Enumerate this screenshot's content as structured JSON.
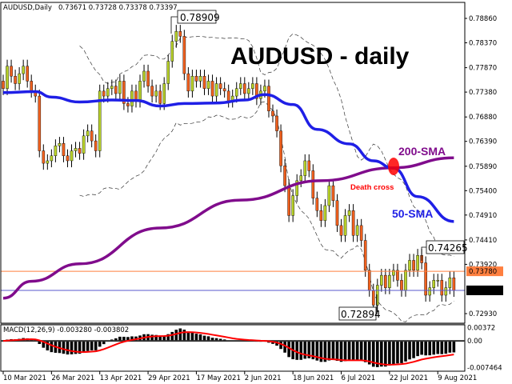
{
  "header": {
    "symbol": "AUDUSD,Daily",
    "ohlc": "0.73671 0.73728 0.73378 0.73397"
  },
  "macd_header": "MACD(12,26,9) -0.003280 -0.003802",
  "annotations": {
    "title": "AUDUSD - daily",
    "sma200_label": "200-SMA",
    "sma50_label": "50-SMA",
    "death_cross_label": "Death cross",
    "high_label": "0.78909",
    "swing_label": "0.74265",
    "low_label": "0.72894"
  },
  "colors": {
    "bull": "#b8d12a",
    "bear": "#f0601e",
    "sma50": "#1f1fe6",
    "sma200": "#800c8c",
    "ask_line": "#ff7f3f",
    "bid_line": "#5a5acd",
    "macd_signal": "#ff0000",
    "death_cross": "#ff0000"
  },
  "chart_data": [
    {
      "type": "candlestick",
      "price_axis": {
        "ticks": [
          "0.78860",
          "0.78370",
          "0.77870",
          "0.77380",
          "0.76880",
          "0.76390",
          "0.75890",
          "0.75400",
          "0.74910",
          "0.74410",
          "0.73920",
          "0.72930"
        ],
        "range": [
          0.7245,
          0.7925
        ]
      },
      "ask_price": "0.73780",
      "bid_price": "0.73397",
      "date_ticks": [
        {
          "date": "2021-03-10",
          "label": "10 Mar 2021"
        },
        {
          "date": "2021-03-26",
          "label": "26 Mar 2021"
        },
        {
          "date": "2021-04-13",
          "label": "13 Apr 2021"
        },
        {
          "date": "2021-04-29",
          "label": "29 Apr 2021"
        },
        {
          "date": "2021-05-17",
          "label": "17 May 2021"
        },
        {
          "date": "2021-06-02",
          "label": "2 Jun 2021"
        },
        {
          "date": "2021-06-18",
          "label": "18 Jun 2021"
        },
        {
          "date": "2021-07-06",
          "label": "6 Jul 2021"
        },
        {
          "date": "2021-07-22",
          "label": "22 Jul 2021"
        },
        {
          "date": "2021-08-09",
          "label": "9 Aug 2021"
        }
      ],
      "closes": [
        [
          "2021-03-10",
          0.7745
        ],
        [
          "2021-03-11",
          0.779
        ],
        [
          "2021-03-12",
          0.777
        ],
        [
          "2021-03-15",
          0.7755
        ],
        [
          "2021-03-16",
          0.7775
        ],
        [
          "2021-03-17",
          0.779
        ],
        [
          "2021-03-18",
          0.776
        ],
        [
          "2021-03-19",
          0.774
        ],
        [
          "2021-03-22",
          0.773
        ],
        [
          "2021-03-23",
          0.762
        ],
        [
          "2021-03-24",
          0.7595
        ],
        [
          "2021-03-25",
          0.76
        ],
        [
          "2021-03-26",
          0.761
        ],
        [
          "2021-03-29",
          0.763
        ],
        [
          "2021-03-30",
          0.7635
        ],
        [
          "2021-03-31",
          0.761
        ],
        [
          "2021-04-01",
          0.76
        ],
        [
          "2021-04-02",
          0.762
        ],
        [
          "2021-04-05",
          0.7625
        ],
        [
          "2021-04-06",
          0.7615
        ],
        [
          "2021-04-07",
          0.765
        ],
        [
          "2021-04-08",
          0.766
        ],
        [
          "2021-04-09",
          0.764
        ],
        [
          "2021-04-12",
          0.762
        ],
        [
          "2021-04-13",
          0.774
        ],
        [
          "2021-04-14",
          0.773
        ],
        [
          "2021-04-15",
          0.7745
        ],
        [
          "2021-04-16",
          0.775
        ],
        [
          "2021-04-19",
          0.7735
        ],
        [
          "2021-04-20",
          0.776
        ],
        [
          "2021-04-21",
          0.7715
        ],
        [
          "2021-04-22",
          0.771
        ],
        [
          "2021-04-23",
          0.774
        ],
        [
          "2021-04-26",
          0.772
        ],
        [
          "2021-04-27",
          0.776
        ],
        [
          "2021-04-28",
          0.778
        ],
        [
          "2021-04-29",
          0.775
        ],
        [
          "2021-04-30",
          0.773
        ],
        [
          "2021-05-03",
          0.774
        ],
        [
          "2021-05-04",
          0.7715
        ],
        [
          "2021-05-05",
          0.7755
        ],
        [
          "2021-05-06",
          0.78
        ],
        [
          "2021-05-07",
          0.784
        ],
        [
          "2021-05-10",
          0.786
        ],
        [
          "2021-05-11",
          0.785
        ],
        [
          "2021-05-12",
          0.7775
        ],
        [
          "2021-05-13",
          0.774
        ],
        [
          "2021-05-14",
          0.777
        ],
        [
          "2021-05-17",
          0.776
        ],
        [
          "2021-05-18",
          0.777
        ],
        [
          "2021-05-19",
          0.7745
        ],
        [
          "2021-05-20",
          0.776
        ],
        [
          "2021-05-21",
          0.773
        ],
        [
          "2021-05-24",
          0.7755
        ],
        [
          "2021-05-25",
          0.7745
        ],
        [
          "2021-05-26",
          0.774
        ],
        [
          "2021-05-27",
          0.772
        ],
        [
          "2021-05-28",
          0.773
        ],
        [
          "2021-05-31",
          0.7745
        ],
        [
          "2021-06-01",
          0.7755
        ],
        [
          "2021-06-02",
          0.7735
        ],
        [
          "2021-06-03",
          0.7745
        ],
        [
          "2021-06-04",
          0.7755
        ],
        [
          "2021-06-07",
          0.7725
        ],
        [
          "2021-06-08",
          0.774
        ],
        [
          "2021-06-09",
          0.775
        ],
        [
          "2021-06-10",
          0.77
        ],
        [
          "2021-06-11",
          0.769
        ],
        [
          "2021-06-14",
          0.766
        ],
        [
          "2021-06-15",
          0.759
        ],
        [
          "2021-06-16",
          0.755
        ],
        [
          "2021-06-17",
          0.749
        ],
        [
          "2021-06-18",
          0.753
        ],
        [
          "2021-06-21",
          0.756
        ],
        [
          "2021-06-22",
          0.757
        ],
        [
          "2021-06-23",
          0.76
        ],
        [
          "2021-06-24",
          0.758
        ],
        [
          "2021-06-25",
          0.7525
        ],
        [
          "2021-06-28",
          0.75
        ],
        [
          "2021-06-29",
          0.748
        ],
        [
          "2021-06-30",
          0.751
        ],
        [
          "2021-07-01",
          0.755
        ],
        [
          "2021-07-02",
          0.752
        ],
        [
          "2021-07-05",
          0.747
        ],
        [
          "2021-07-06",
          0.745
        ],
        [
          "2021-07-07",
          0.749
        ],
        [
          "2021-07-08",
          0.75
        ],
        [
          "2021-07-09",
          0.745
        ],
        [
          "2021-07-12",
          0.747
        ],
        [
          "2021-07-13",
          0.744
        ],
        [
          "2021-07-14",
          0.738
        ],
        [
          "2021-07-15",
          0.734
        ],
        [
          "2021-07-16",
          0.731
        ],
        [
          "2021-07-19",
          0.735
        ],
        [
          "2021-07-20",
          0.737
        ],
        [
          "2021-07-21",
          0.7345
        ],
        [
          "2021-07-22",
          0.737
        ],
        [
          "2021-07-23",
          0.738
        ],
        [
          "2021-07-26",
          0.736
        ],
        [
          "2021-07-27",
          0.734
        ],
        [
          "2021-07-28",
          0.738
        ],
        [
          "2021-07-29",
          0.74
        ],
        [
          "2021-07-30",
          0.738
        ],
        [
          "2021-08-02",
          0.741
        ],
        [
          "2021-08-03",
          0.7395
        ],
        [
          "2021-08-04",
          0.733
        ],
        [
          "2021-08-05",
          0.7345
        ],
        [
          "2021-08-06",
          0.736
        ],
        [
          "2021-08-09",
          0.736
        ],
        [
          "2021-08-10",
          0.733
        ],
        [
          "2021-08-11",
          0.7345
        ],
        [
          "2021-08-12",
          0.7365
        ],
        [
          "2021-08-13",
          0.73397
        ]
      ],
      "sma50": [
        [
          "2021-03-10",
          0.7737
        ],
        [
          "2021-03-22",
          0.7739
        ],
        [
          "2021-03-26",
          0.7728
        ],
        [
          "2021-04-06",
          0.7718
        ],
        [
          "2021-04-16",
          0.7722
        ],
        [
          "2021-04-26",
          0.7721
        ],
        [
          "2021-05-04",
          0.771
        ],
        [
          "2021-05-12",
          0.7715
        ],
        [
          "2021-05-24",
          0.7716
        ],
        [
          "2021-06-02",
          0.7722
        ],
        [
          "2021-06-09",
          0.7733
        ],
        [
          "2021-06-18",
          0.7713
        ],
        [
          "2021-06-28",
          0.7663
        ],
        [
          "2021-07-08",
          0.7634
        ],
        [
          "2021-07-16",
          0.76
        ],
        [
          "2021-07-23",
          0.7585
        ],
        [
          "2021-08-02",
          0.7528
        ],
        [
          "2021-08-13",
          0.7478
        ]
      ],
      "sma200": [
        [
          "2021-03-10",
          0.7324
        ],
        [
          "2021-03-19",
          0.7358
        ],
        [
          "2021-04-06",
          0.7393
        ],
        [
          "2021-05-04",
          0.7465
        ],
        [
          "2021-06-01",
          0.7521
        ],
        [
          "2021-06-29",
          0.756
        ],
        [
          "2021-07-23",
          0.7586
        ],
        [
          "2021-08-13",
          0.7606
        ]
      ],
      "bollinger": {
        "period": 20,
        "deviations": 2
      }
    },
    {
      "type": "bar+line",
      "name": "MACD(12,26,9)",
      "axis_ticks": [
        "0.00372",
        "0.00",
        "-0.007464"
      ],
      "range": [
        -0.0085,
        0.0045
      ],
      "last_macd": -0.00328,
      "last_signal": -0.003802
    }
  ]
}
